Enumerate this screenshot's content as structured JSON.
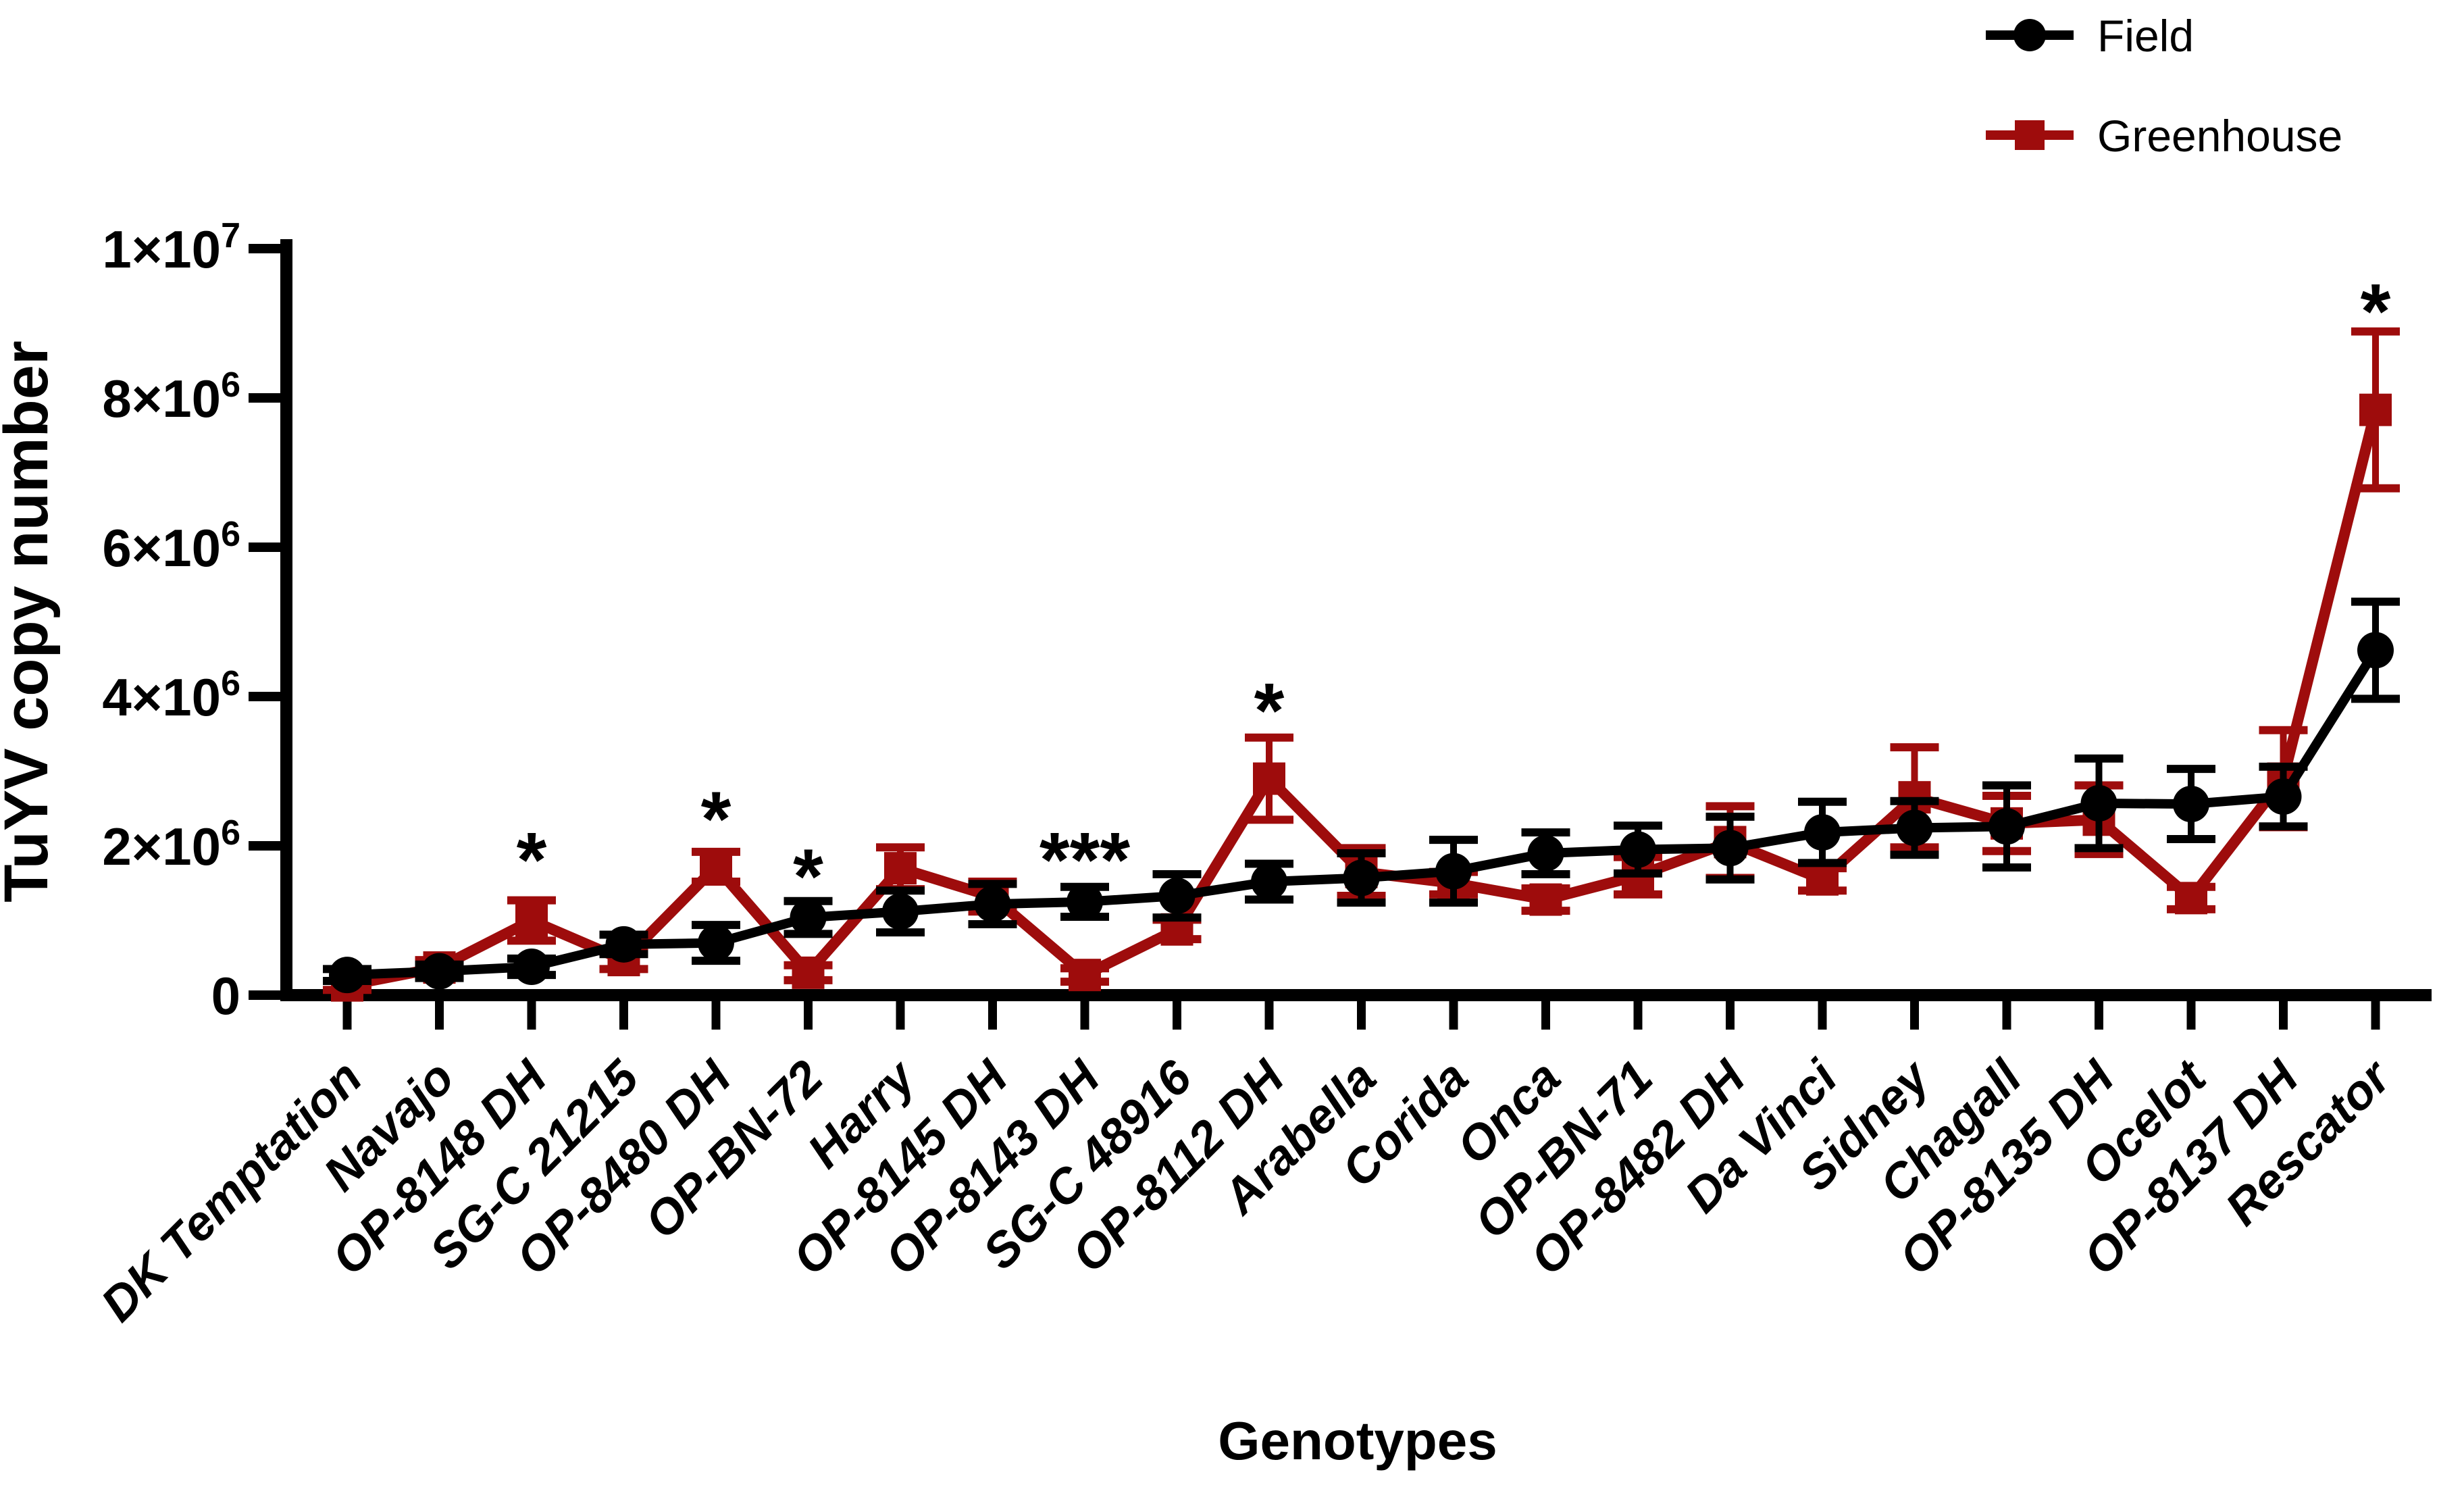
{
  "figure": {
    "background": "#ffffff",
    "series_colors": {
      "field": "#000000",
      "greenhouse": "#9E0C0C"
    }
  },
  "legend": {
    "items": [
      {
        "label": "Field",
        "marker": "circle",
        "color": "#000000"
      },
      {
        "label": "Greenhouse",
        "marker": "square",
        "color": "#9E0C0C"
      }
    ]
  },
  "chart_data": {
    "type": "line",
    "title": "",
    "xlabel": "Genotypes",
    "ylabel": "TuYV copy number",
    "ylim": [
      0,
      10000000
    ],
    "grid": false,
    "legend_position": "top-right",
    "y_ticks": [
      {
        "value": 0,
        "main": "0",
        "sup": ""
      },
      {
        "value": 2000000,
        "main": "2×10",
        "sup": "6"
      },
      {
        "value": 4000000,
        "main": "4×10",
        "sup": "6"
      },
      {
        "value": 6000000,
        "main": "6×10",
        "sup": "6"
      },
      {
        "value": 8000000,
        "main": "8×10",
        "sup": "6"
      },
      {
        "value": 10000000,
        "main": "1×10",
        "sup": "7"
      }
    ],
    "categories": [
      "DK Temptation",
      "Navajo",
      "OP-8148 DH",
      "SG-C 21215",
      "OP-8480 DH",
      "OP-BN-72",
      "Harry",
      "OP-8145 DH",
      "OP-8143 DH",
      "SG-C 48916",
      "OP-8112 DH",
      "Arabella",
      "Corida",
      "Onca",
      "OP-BN-71",
      "OP-8482 DH",
      "Da Vinci",
      "Sidney",
      "Chagall",
      "OP-8135 DH",
      "Ocelot",
      "OP-8137 DH",
      "Rescator"
    ],
    "series": [
      {
        "name": "Field",
        "marker": "circle",
        "color": "#000000",
        "values": [
          270000,
          320000,
          380000,
          680000,
          700000,
          1040000,
          1120000,
          1220000,
          1250000,
          1330000,
          1520000,
          1570000,
          1660000,
          1900000,
          1950000,
          1970000,
          2180000,
          2240000,
          2260000,
          2570000,
          2560000,
          2660000,
          4620000
        ],
        "errors": [
          80000,
          90000,
          110000,
          130000,
          240000,
          220000,
          280000,
          270000,
          200000,
          290000,
          240000,
          330000,
          420000,
          280000,
          320000,
          420000,
          410000,
          360000,
          550000,
          600000,
          470000,
          400000,
          650000
        ]
      },
      {
        "name": "Greenhouse",
        "marker": "square",
        "color": "#9E0C0C",
        "values": [
          130000,
          370000,
          1000000,
          470000,
          1720000,
          300000,
          1700000,
          1320000,
          270000,
          880000,
          2900000,
          1650000,
          1500000,
          1280000,
          1600000,
          2050000,
          1550000,
          2650000,
          2300000,
          2350000,
          1300000,
          2900000,
          7840000
        ],
        "errors": [
          60000,
          100000,
          270000,
          120000,
          200000,
          100000,
          280000,
          200000,
          90000,
          130000,
          550000,
          320000,
          150000,
          150000,
          250000,
          480000,
          150000,
          670000,
          370000,
          460000,
          150000,
          650000,
          1050000
        ]
      }
    ],
    "significance": [
      {
        "index": 2,
        "category": "OP-8148 DH",
        "text": "*",
        "y": 1950000
      },
      {
        "index": 4,
        "category": "OP-8480 DH",
        "text": "*",
        "y": 2500000
      },
      {
        "index": 5,
        "category": "OP-BN-72",
        "text": "*",
        "y": 1730000
      },
      {
        "index": 8,
        "category": "OP-8143 DH",
        "text": "***",
        "y": 1950000
      },
      {
        "index": 10,
        "category": "OP-8112 DH",
        "text": "*",
        "y": 3950000
      },
      {
        "index": 22,
        "category": "Rescator",
        "text": "*",
        "y": 9300000
      }
    ]
  }
}
